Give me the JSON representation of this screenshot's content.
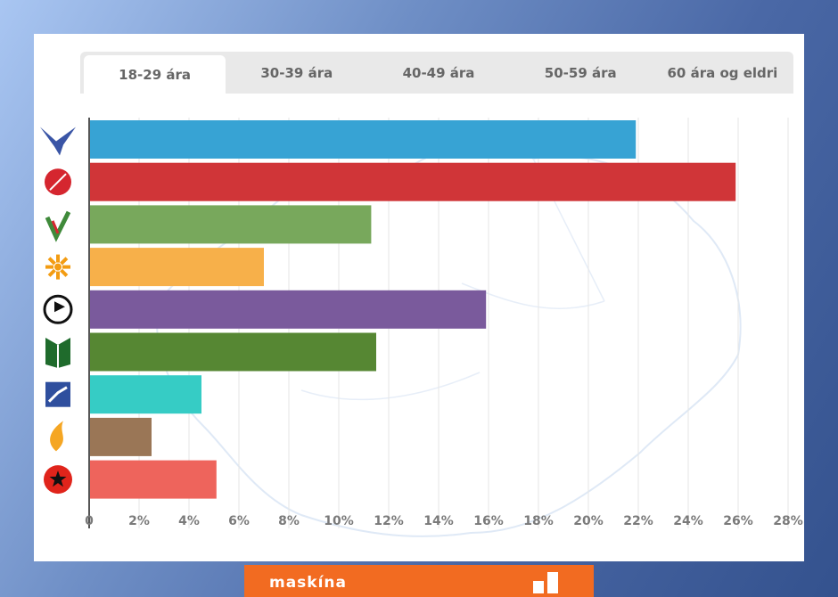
{
  "tabs": [
    {
      "label": "18-29 ára",
      "active": true
    },
    {
      "label": "30-39 ára",
      "active": false
    },
    {
      "label": "40-49 ára",
      "active": false
    },
    {
      "label": "50-59 ára",
      "active": false
    },
    {
      "label": "60 ára og eldri",
      "active": false
    }
  ],
  "brand": {
    "name": "maskína",
    "color": "#f26b21"
  },
  "chart_data": {
    "type": "bar",
    "orientation": "horizontal",
    "xlim": [
      0,
      28
    ],
    "xticks": [
      "0",
      "2%",
      "4%",
      "6%",
      "8%",
      "10%",
      "12%",
      "14%",
      "16%",
      "18%",
      "20%",
      "22%",
      "24%",
      "26%",
      "28%"
    ],
    "grid": true,
    "categories": [
      {
        "icon": "falcon-icon",
        "value": 21.9,
        "color": "#37a3d4"
      },
      {
        "icon": "rose-icon",
        "value": 25.9,
        "color": "#d03538"
      },
      {
        "icon": "v-check-icon",
        "value": 11.3,
        "color": "#78a85c"
      },
      {
        "icon": "sun-icon",
        "value": 7.0,
        "color": "#f7b04a"
      },
      {
        "icon": "pirate-flag-icon",
        "value": 15.9,
        "color": "#7a5a9c"
      },
      {
        "icon": "open-book-icon",
        "value": 11.5,
        "color": "#568733"
      },
      {
        "icon": "rising-arrow-icon",
        "value": 4.5,
        "color": "#36ccc5"
      },
      {
        "icon": "flame-icon",
        "value": 2.5,
        "color": "#9a7656"
      },
      {
        "icon": "fist-star-icon",
        "value": 5.1,
        "color": "#ee645c"
      }
    ]
  }
}
